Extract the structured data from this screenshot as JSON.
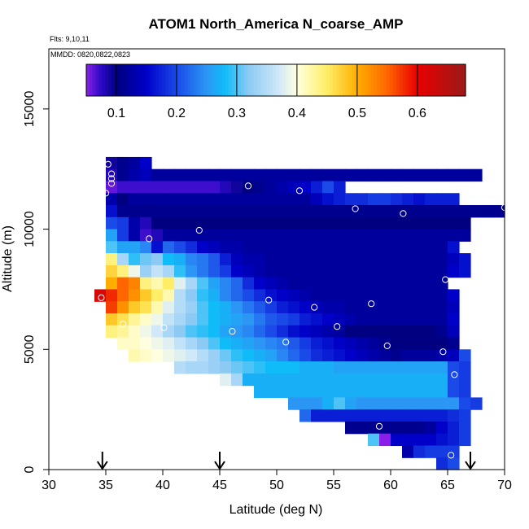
{
  "chart_data": {
    "type": "heatmap",
    "title": "ATOM1 North_America N_coarse_AMP",
    "flights_note": "Flts: 9,10,11",
    "dates_note": "MMDD: 0820,0822,0823",
    "xlabel": "Latitude (deg N)",
    "ylabel": "Altitude (m)",
    "xlim": [
      30,
      70
    ],
    "ylim": [
      0,
      17500
    ],
    "x_ticks": [
      30,
      35,
      40,
      45,
      50,
      55,
      60,
      65,
      70
    ],
    "y_ticks": [
      0,
      5000,
      10000,
      15000
    ],
    "colorbar": {
      "range": [
        0.05,
        0.68
      ],
      "ticks": [
        0.1,
        0.2,
        0.3,
        0.4,
        0.5,
        0.6
      ],
      "tick_labels": [
        "0.1",
        "0.2",
        "0.3",
        "0.4",
        "0.5",
        "0.6"
      ],
      "stops": [
        [
          0.05,
          "#8a1ee8"
        ],
        [
          0.075,
          "#2a0ac6"
        ],
        [
          0.1,
          "#000080"
        ],
        [
          0.15,
          "#0000c8"
        ],
        [
          0.2,
          "#1a4ae8"
        ],
        [
          0.25,
          "#2c96f4"
        ],
        [
          0.28,
          "#10bcf8"
        ],
        [
          0.32,
          "#8ccaf4"
        ],
        [
          0.37,
          "#d0e8f8"
        ],
        [
          0.4,
          "#ffffe0"
        ],
        [
          0.45,
          "#ffee66"
        ],
        [
          0.5,
          "#ffae00"
        ],
        [
          0.55,
          "#ff6600"
        ],
        [
          0.6,
          "#e80000"
        ],
        [
          0.68,
          "#9a1a1a"
        ]
      ]
    },
    "lat_step": 1,
    "alt_step": 500,
    "field": [
      {
        "alt": 12500,
        "from": 35,
        "cells": [
          0.09,
          0.11,
          0.12,
          0.15
        ]
      },
      {
        "alt": 12000,
        "from": 35,
        "cells": [
          0.08,
          0.11,
          0.13,
          0.14,
          0.12,
          0.12,
          0.12,
          0.12,
          0.12,
          0.12,
          0.12,
          0.12,
          0.12,
          0.12,
          0.12,
          0.12,
          0.12,
          0.12,
          0.12,
          0.12,
          0.12,
          0.12,
          0.12,
          0.12,
          0.12,
          0.12,
          0.12,
          0.12,
          0.12,
          0.12,
          0.12,
          0.12,
          0.12
        ]
      },
      {
        "alt": 11500,
        "from": 35,
        "cells": [
          0.06,
          0.07,
          0.07,
          0.07,
          0.07,
          0.07,
          0.07,
          0.07,
          0.07,
          0.07,
          0.08,
          0.09,
          0.1,
          0.11,
          0.12,
          0.13,
          0.14,
          0.15,
          0.17,
          0.2,
          0.17
        ]
      },
      {
        "alt": 11000,
        "from": 35,
        "cells": [
          0.13,
          0.1,
          0.12,
          0.12,
          0.12,
          0.12,
          0.12,
          0.12,
          0.12,
          0.12,
          0.12,
          0.12,
          0.12,
          0.12,
          0.12,
          0.12,
          0.12,
          0.12,
          0.14,
          0.16,
          0.17,
          0.18,
          0.18,
          0.19,
          0.19,
          0.18,
          0.17,
          0.16,
          0.17,
          0.17,
          0.17
        ]
      },
      {
        "alt": 10500,
        "from": 35,
        "cells": [
          0.16,
          0.11,
          0.11,
          0.11,
          0.11,
          0.11,
          0.11,
          0.11,
          0.11,
          0.11,
          0.11,
          0.11,
          0.11,
          0.11,
          0.11,
          0.11,
          0.11,
          0.11,
          0.11,
          0.11,
          0.11,
          0.11,
          0.11,
          0.11,
          0.11,
          0.11,
          0.11,
          0.11,
          0.11,
          0.11,
          0.11,
          0.11,
          0.11,
          0.11,
          0.11
        ]
      },
      {
        "alt": 10000,
        "from": 35,
        "cells": [
          0.2,
          0.19,
          0.13,
          0.08,
          0.1,
          0.1,
          0.1,
          0.1,
          0.1,
          0.1,
          0.1,
          0.1,
          0.1,
          0.1,
          0.1,
          0.1,
          0.1,
          0.1,
          0.1,
          0.1,
          0.1,
          0.1,
          0.1,
          0.1,
          0.1,
          0.1,
          0.1,
          0.1,
          0.1,
          0.1,
          0.1,
          0.1
        ]
      },
      {
        "alt": 9500,
        "from": 35,
        "cells": [
          0.26,
          0.19,
          0.13,
          0.07,
          0.08,
          0.12,
          0.12,
          0.12,
          0.12,
          0.12,
          0.12,
          0.12,
          0.12,
          0.12,
          0.12,
          0.12,
          0.12,
          0.12,
          0.12,
          0.12,
          0.12,
          0.12,
          0.12,
          0.12,
          0.12,
          0.12,
          0.12,
          0.12,
          0.12,
          0.12,
          0.12,
          0.12
        ]
      },
      {
        "alt": 9000,
        "from": 35,
        "cells": [
          0.3,
          0.26,
          0.26,
          0.24,
          0.16,
          0.22,
          0.2,
          0.18,
          0.15,
          0.14,
          0.13,
          0.13,
          0.12,
          0.12,
          0.12,
          0.12,
          0.12,
          0.12,
          0.12,
          0.12,
          0.12,
          0.12,
          0.12,
          0.12,
          0.12,
          0.12,
          0.12,
          0.12,
          0.12,
          0.12,
          0.16
        ]
      },
      {
        "alt": 8500,
        "from": 35,
        "cells": [
          0.44,
          0.34,
          0.29,
          0.31,
          0.32,
          0.28,
          0.27,
          0.24,
          0.23,
          0.21,
          0.17,
          0.14,
          0.13,
          0.13,
          0.12,
          0.12,
          0.12,
          0.12,
          0.12,
          0.12,
          0.12,
          0.12,
          0.12,
          0.12,
          0.12,
          0.12,
          0.12,
          0.12,
          0.12,
          0.12,
          0.14,
          0.16
        ]
      },
      {
        "alt": 8000,
        "from": 35,
        "cells": [
          0.47,
          0.44,
          0.39,
          0.33,
          0.36,
          0.34,
          0.29,
          0.25,
          0.23,
          0.21,
          0.19,
          0.15,
          0.14,
          0.13,
          0.12,
          0.12,
          0.12,
          0.12,
          0.12,
          0.12,
          0.12,
          0.12,
          0.12,
          0.12,
          0.12,
          0.12,
          0.12,
          0.12,
          0.12,
          0.12,
          0.15,
          0.16
        ]
      },
      {
        "alt": 7500,
        "from": 35,
        "cells": [
          0.5,
          0.55,
          0.53,
          0.44,
          0.42,
          0.45,
          0.38,
          0.34,
          0.3,
          0.26,
          0.24,
          0.22,
          0.18,
          0.15,
          0.14,
          0.13,
          0.12,
          0.12,
          0.12,
          0.12,
          0.12,
          0.12,
          0.12,
          0.12,
          0.12,
          0.12,
          0.12,
          0.12,
          0.12,
          0.12
        ]
      },
      {
        "alt": 7000,
        "from": 34,
        "cells": [
          0.62,
          0.58,
          0.55,
          0.52,
          0.48,
          0.45,
          0.42,
          0.35,
          0.32,
          0.29,
          0.27,
          0.24,
          0.22,
          0.2,
          0.18,
          0.16,
          0.15,
          0.14,
          0.13,
          0.12,
          0.12,
          0.12,
          0.12,
          0.12,
          0.12,
          0.12,
          0.12,
          0.12,
          0.12,
          0.12,
          0.12,
          0.15
        ]
      },
      {
        "alt": 6500,
        "from": 35,
        "cells": [
          0.57,
          0.52,
          0.48,
          0.46,
          0.42,
          0.38,
          0.35,
          0.33,
          0.3,
          0.28,
          0.27,
          0.25,
          0.23,
          0.21,
          0.19,
          0.17,
          0.16,
          0.15,
          0.14,
          0.13,
          0.13,
          0.12,
          0.12,
          0.12,
          0.12,
          0.12,
          0.12,
          0.12,
          0.12,
          0.12,
          0.14
        ]
      },
      {
        "alt": 6000,
        "from": 35,
        "cells": [
          0.48,
          0.46,
          0.43,
          0.41,
          0.39,
          0.36,
          0.34,
          0.32,
          0.3,
          0.28,
          0.27,
          0.26,
          0.25,
          0.23,
          0.21,
          0.2,
          0.19,
          0.17,
          0.16,
          0.15,
          0.14,
          0.13,
          0.12,
          0.12,
          0.12,
          0.12,
          0.12,
          0.12,
          0.12,
          0.12,
          0.15
        ]
      },
      {
        "alt": 5500,
        "from": 35,
        "cells": [
          0.44,
          0.43,
          0.41,
          0.39,
          0.37,
          0.34,
          0.32,
          0.3,
          0.29,
          0.28,
          0.26,
          0.25,
          0.24,
          0.22,
          0.2,
          0.18,
          0.16,
          0.15,
          0.14,
          0.13,
          0.12,
          0.1,
          0.1,
          0.1,
          0.1,
          0.1,
          0.1,
          0.1,
          0.1,
          0.11,
          0.14
        ]
      },
      {
        "alt": 5000,
        "from": 36,
        "cells": [
          0.41,
          0.41,
          0.4,
          0.39,
          0.38,
          0.36,
          0.34,
          0.32,
          0.3,
          0.28,
          0.27,
          0.26,
          0.25,
          0.24,
          0.23,
          0.21,
          0.19,
          0.17,
          0.16,
          0.15,
          0.14,
          0.13,
          0.12,
          0.11,
          0.1,
          0.1,
          0.1,
          0.1,
          0.1,
          0.11
        ]
      },
      {
        "alt": 4500,
        "from": 37,
        "cells": [
          0.42,
          0.41,
          0.4,
          0.39,
          0.38,
          0.37,
          0.35,
          0.33,
          0.31,
          0.29,
          0.28,
          0.27,
          0.26,
          0.24,
          0.22,
          0.2,
          0.18,
          0.17,
          0.16,
          0.15,
          0.14,
          0.13,
          0.12,
          0.11,
          0.12,
          0.12,
          0.12,
          0.13,
          0.14,
          0.2
        ]
      },
      {
        "alt": 4000,
        "from": 41,
        "cells": [
          0.35,
          0.34,
          0.34,
          0.33,
          0.32,
          0.31,
          0.3,
          0.29,
          0.28,
          0.28,
          0.28,
          0.27,
          0.27,
          0.27,
          0.26,
          0.26,
          0.26,
          0.26,
          0.26,
          0.26,
          0.26,
          0.26,
          0.26,
          0.26,
          0.2,
          0.19
        ]
      },
      {
        "alt": 3500,
        "from": 45,
        "cells": [
          0.38,
          0.34,
          0.27,
          0.27,
          0.27,
          0.27,
          0.27,
          0.27,
          0.27,
          0.27,
          0.27,
          0.27,
          0.27,
          0.27,
          0.27,
          0.27,
          0.27,
          0.27,
          0.27,
          0.27,
          0.2,
          0.19
        ]
      },
      {
        "alt": 3000,
        "from": 48,
        "cells": [
          0.27,
          0.27,
          0.27,
          0.27,
          0.27,
          0.27,
          0.27,
          0.27,
          0.27,
          0.27,
          0.27,
          0.27,
          0.27,
          0.27,
          0.27,
          0.27,
          0.27,
          0.2,
          0.19
        ]
      },
      {
        "alt": 2500,
        "from": 51,
        "cells": [
          0.25,
          0.25,
          0.25,
          0.27,
          0.3,
          0.26,
          0.25,
          0.25,
          0.25,
          0.25,
          0.25,
          0.25,
          0.25,
          0.25,
          0.25,
          0.2,
          0.19
        ]
      },
      {
        "alt": 2000,
        "from": 52,
        "cells": [
          0.22,
          0.17,
          0.17,
          0.17,
          0.17,
          0.17,
          0.17,
          0.17,
          0.17,
          0.17,
          0.17,
          0.17,
          0.17,
          0.18,
          0.19
        ]
      },
      {
        "alt": 1500,
        "from": 56,
        "cells": [
          0.11,
          0.11,
          0.11,
          0.11,
          0.11,
          0.11,
          0.11,
          0.12,
          0.15,
          0.17,
          0.19
        ]
      },
      {
        "alt": 1000,
        "from": 58,
        "cells": [
          0.3,
          0.05,
          0.15,
          0.15,
          0.15,
          0.15,
          0.16,
          0.17,
          0.19
        ]
      },
      {
        "alt": 500,
        "from": 61,
        "cells": [
          0.13,
          0.18,
          0.19,
          0.19,
          0.19
        ]
      },
      {
        "alt": 0,
        "from": 64,
        "cells": [
          0.18,
          0.2
        ]
      }
    ],
    "obs_points": [
      {
        "lat": 34.7,
        "alt": 12700
      },
      {
        "lat": 35.2,
        "alt": 12700
      },
      {
        "lat": 35.5,
        "alt": 12300
      },
      {
        "lat": 35.5,
        "alt": 12100
      },
      {
        "lat": 35.5,
        "alt": 11900
      },
      {
        "lat": 35.0,
        "alt": 11500
      },
      {
        "lat": 47.5,
        "alt": 11800
      },
      {
        "lat": 52.0,
        "alt": 11600
      },
      {
        "lat": 56.9,
        "alt": 10850
      },
      {
        "lat": 61.1,
        "alt": 10650
      },
      {
        "lat": 70.0,
        "alt": 10900
      },
      {
        "lat": 43.2,
        "alt": 9950
      },
      {
        "lat": 38.8,
        "alt": 9600
      },
      {
        "lat": 64.8,
        "alt": 7900
      },
      {
        "lat": 34.6,
        "alt": 7150
      },
      {
        "lat": 49.3,
        "alt": 7050
      },
      {
        "lat": 53.3,
        "alt": 6750
      },
      {
        "lat": 58.3,
        "alt": 6900
      },
      {
        "lat": 36.5,
        "alt": 6050
      },
      {
        "lat": 40.1,
        "alt": 5900
      },
      {
        "lat": 46.1,
        "alt": 5750
      },
      {
        "lat": 55.3,
        "alt": 5950
      },
      {
        "lat": 50.8,
        "alt": 5300
      },
      {
        "lat": 59.7,
        "alt": 5150
      },
      {
        "lat": 64.6,
        "alt": 4900
      },
      {
        "lat": 65.6,
        "alt": 3950
      },
      {
        "lat": 59.0,
        "alt": 1800
      },
      {
        "lat": 65.3,
        "alt": 600
      }
    ],
    "arrows_lat": [
      34.7,
      45.0,
      67.0
    ]
  }
}
